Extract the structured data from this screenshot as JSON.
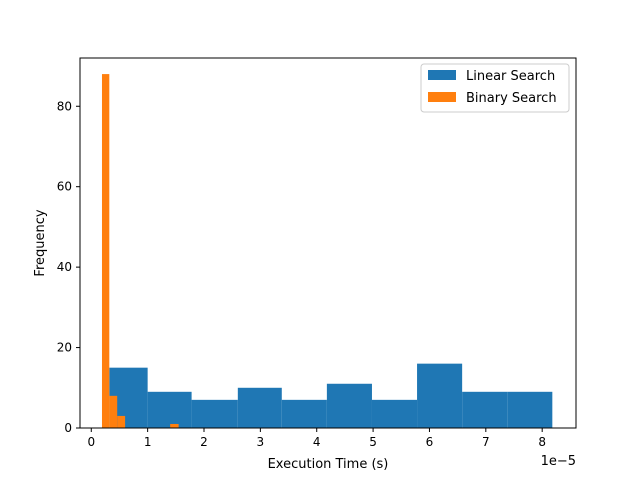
{
  "chart_data": {
    "type": "bar",
    "xlabel": "Execution Time (s)",
    "ylabel": "Frequency",
    "x_offset_label": "1e−5",
    "x_scale": 1e-05,
    "xlim": [
      -0.2,
      8.6
    ],
    "ylim": [
      0,
      92
    ],
    "x_ticks": [
      0,
      1,
      2,
      3,
      4,
      5,
      6,
      7,
      8
    ],
    "x_tick_labels": [
      "0",
      "1",
      "2",
      "3",
      "4",
      "5",
      "6",
      "7",
      "8"
    ],
    "y_ticks": [
      0,
      20,
      40,
      60,
      80
    ],
    "y_tick_labels": [
      "0",
      "20",
      "40",
      "60",
      "80"
    ],
    "grid": false,
    "legend_position": "top-right",
    "series": [
      {
        "name": "Linear Search",
        "color": "#1f77b4",
        "bins": [
          {
            "x0": 0.32,
            "x1": 1.0,
            "count": 15
          },
          {
            "x0": 1.0,
            "x1": 1.78,
            "count": 9
          },
          {
            "x0": 1.78,
            "x1": 2.6,
            "count": 7
          },
          {
            "x0": 2.6,
            "x1": 3.38,
            "count": 10
          },
          {
            "x0": 3.38,
            "x1": 4.18,
            "count": 7
          },
          {
            "x0": 4.18,
            "x1": 4.98,
            "count": 11
          },
          {
            "x0": 4.98,
            "x1": 5.78,
            "count": 7
          },
          {
            "x0": 5.78,
            "x1": 6.58,
            "count": 16
          },
          {
            "x0": 6.58,
            "x1": 7.38,
            "count": 9
          },
          {
            "x0": 7.38,
            "x1": 8.18,
            "count": 9
          }
        ]
      },
      {
        "name": "Binary Search",
        "color": "#ff7f0e",
        "bins": [
          {
            "x0": 0.19,
            "x1": 0.32,
            "count": 88
          },
          {
            "x0": 0.32,
            "x1": 0.46,
            "count": 8
          },
          {
            "x0": 0.46,
            "x1": 0.6,
            "count": 3
          },
          {
            "x0": 0.6,
            "x1": 1.4,
            "count": 0
          },
          {
            "x0": 1.4,
            "x1": 1.55,
            "count": 1
          }
        ]
      }
    ]
  }
}
